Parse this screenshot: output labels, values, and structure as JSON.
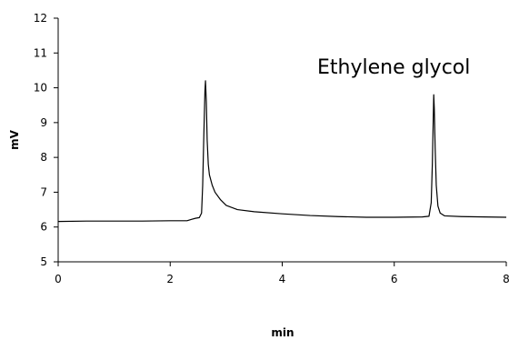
{
  "chart_data": {
    "type": "line",
    "title": "",
    "xlabel": "min",
    "ylabel": "mV",
    "xlim": [
      0,
      8
    ],
    "ylim": [
      5,
      12
    ],
    "xticks": [
      0,
      2,
      4,
      6,
      8
    ],
    "yticks": [
      5,
      6,
      7,
      8,
      9,
      10,
      11,
      12
    ],
    "xtick_labels": [
      "0",
      "2",
      "4",
      "6",
      "8"
    ],
    "ytick_labels": [
      "5",
      "6",
      "7",
      "8",
      "9",
      "10",
      "11",
      "12"
    ],
    "grid": false,
    "legend": "none",
    "annotations": [
      {
        "text": "Ethylene glycol"
      }
    ],
    "series": [
      {
        "color": "#000000",
        "points": [
          [
            0.0,
            6.16
          ],
          [
            0.5,
            6.17
          ],
          [
            1.0,
            6.17
          ],
          [
            1.5,
            6.17
          ],
          [
            2.0,
            6.18
          ],
          [
            2.3,
            6.18
          ],
          [
            2.38,
            6.22
          ],
          [
            2.45,
            6.25
          ],
          [
            2.52,
            6.27
          ],
          [
            2.56,
            6.4
          ],
          [
            2.58,
            7.2
          ],
          [
            2.6,
            8.6
          ],
          [
            2.62,
            9.9
          ],
          [
            2.63,
            10.2
          ],
          [
            2.645,
            9.6
          ],
          [
            2.66,
            8.5
          ],
          [
            2.68,
            7.8
          ],
          [
            2.7,
            7.5
          ],
          [
            2.75,
            7.2
          ],
          [
            2.8,
            7.0
          ],
          [
            2.9,
            6.78
          ],
          [
            3.0,
            6.62
          ],
          [
            3.2,
            6.5
          ],
          [
            3.5,
            6.44
          ],
          [
            4.0,
            6.38
          ],
          [
            4.5,
            6.33
          ],
          [
            5.0,
            6.3
          ],
          [
            5.5,
            6.28
          ],
          [
            6.0,
            6.28
          ],
          [
            6.5,
            6.29
          ],
          [
            6.62,
            6.31
          ],
          [
            6.66,
            6.7
          ],
          [
            6.68,
            7.8
          ],
          [
            6.695,
            9.0
          ],
          [
            6.705,
            9.8
          ],
          [
            6.715,
            9.4
          ],
          [
            6.73,
            8.3
          ],
          [
            6.75,
            7.2
          ],
          [
            6.78,
            6.6
          ],
          [
            6.82,
            6.4
          ],
          [
            6.9,
            6.32
          ],
          [
            7.2,
            6.3
          ],
          [
            7.6,
            6.29
          ],
          [
            8.0,
            6.28
          ]
        ]
      }
    ]
  }
}
